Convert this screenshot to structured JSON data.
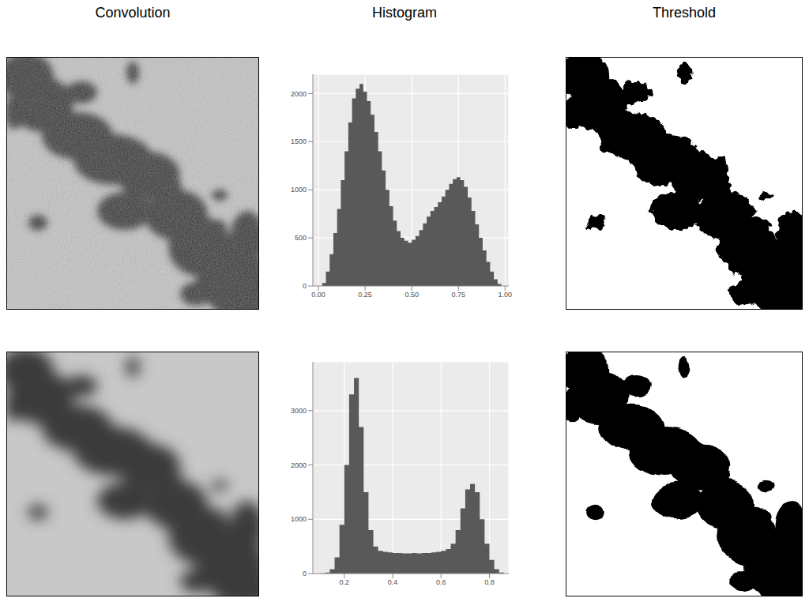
{
  "column_titles": [
    "Convolution",
    "Histogram",
    "Threshold"
  ],
  "chart_data": [
    {
      "type": "histogram",
      "bins": [
        0.02,
        0.04,
        0.06,
        0.08,
        0.1,
        0.12,
        0.14,
        0.16,
        0.18,
        0.2,
        0.22,
        0.24,
        0.26,
        0.28,
        0.3,
        0.32,
        0.34,
        0.36,
        0.38,
        0.4,
        0.42,
        0.44,
        0.46,
        0.48,
        0.5,
        0.52,
        0.54,
        0.56,
        0.58,
        0.6,
        0.62,
        0.64,
        0.66,
        0.68,
        0.7,
        0.72,
        0.74,
        0.76,
        0.78,
        0.8,
        0.82,
        0.84,
        0.86,
        0.88,
        0.9,
        0.92,
        0.94,
        0.96,
        0.98
      ],
      "values": [
        30,
        150,
        330,
        550,
        800,
        1100,
        1400,
        1700,
        1950,
        2050,
        2100,
        2020,
        1920,
        1780,
        1600,
        1400,
        1200,
        1000,
        830,
        680,
        570,
        500,
        470,
        450,
        480,
        520,
        580,
        650,
        720,
        780,
        820,
        870,
        930,
        1000,
        1060,
        1110,
        1130,
        1100,
        1030,
        920,
        780,
        640,
        500,
        370,
        250,
        150,
        70,
        20
      ],
      "color": "#595959",
      "xlim": [
        -0.03,
        1.02
      ],
      "xticks": [
        {
          "value": 0,
          "label": "0.00"
        },
        0.25,
        {
          "value": 0.5,
          "label": "0.50"
        },
        0.75,
        {
          "value": 1,
          "label": "1.00"
        }
      ],
      "ylim": [
        0,
        2200
      ],
      "yticks": [
        0,
        500,
        1000,
        1500,
        2000
      ],
      "grid": true
    },
    {
      "type": "histogram",
      "bins": [
        0.1,
        0.12,
        0.14,
        0.16,
        0.18,
        0.2,
        0.22,
        0.24,
        0.26,
        0.28,
        0.3,
        0.32,
        0.34,
        0.36,
        0.38,
        0.4,
        0.42,
        0.44,
        0.46,
        0.48,
        0.5,
        0.52,
        0.54,
        0.56,
        0.58,
        0.6,
        0.62,
        0.64,
        0.66,
        0.68,
        0.7,
        0.72,
        0.74,
        0.76,
        0.78,
        0.8,
        0.82,
        0.84,
        0.86
      ],
      "values": [
        5,
        20,
        80,
        300,
        900,
        2000,
        3300,
        3600,
        2700,
        1500,
        800,
        500,
        420,
        400,
        390,
        380,
        380,
        370,
        370,
        380,
        370,
        380,
        380,
        390,
        400,
        420,
        450,
        550,
        800,
        1200,
        1550,
        1650,
        1500,
        1000,
        550,
        250,
        80,
        20
      ],
      "color": "#595959",
      "xlim": [
        0.07,
        0.88
      ],
      "xticks": [
        0.2,
        0.4,
        0.6,
        0.8
      ],
      "ylim": [
        0,
        3900
      ],
      "yticks": [
        0,
        1000,
        2000,
        3000
      ],
      "grid": true
    }
  ]
}
